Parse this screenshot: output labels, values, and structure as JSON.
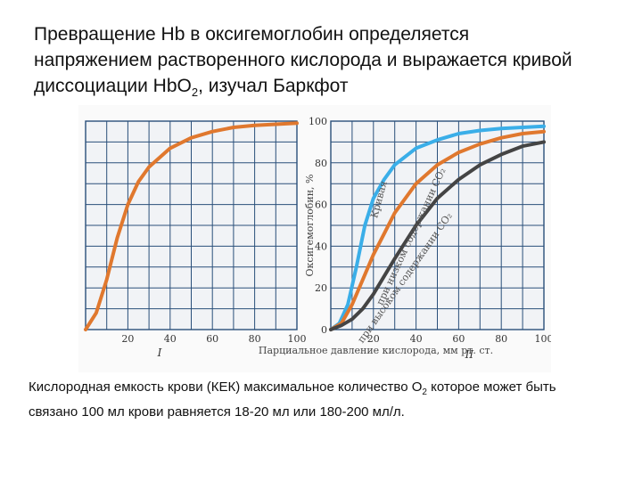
{
  "slide": {
    "title_line1": "Превращение Hb в оксигемоглобин определяется",
    "title_line2": "напряжением растворенного кислорода и выражается кривой",
    "title_line3_pre": "диссоциации HbO",
    "title_line3_sub": "2",
    "title_line3_post": ", изучал Баркфот",
    "footer_pre": "Кислородная емкость крови (КЕК) максимальное количество О",
    "footer_sub": "2",
    "footer_post": " которое может быть",
    "footer_line2": "связано 100 мл крови равняется 18-20 мл или  180-200 мл/л."
  },
  "chart_data": [
    {
      "type": "line",
      "panel_label": "I",
      "xlim": [
        0,
        100
      ],
      "ylim": [
        0,
        100
      ],
      "x_ticks": [
        "20",
        "40",
        "60",
        "80",
        "100"
      ],
      "series": [
        {
          "color": "#e0782e",
          "x": [
            0,
            5,
            10,
            15,
            20,
            25,
            30,
            40,
            50,
            60,
            70,
            80,
            90,
            100
          ],
          "y": [
            0,
            8,
            24,
            44,
            60,
            71,
            78,
            87,
            92,
            95,
            97,
            98,
            98.5,
            99
          ]
        }
      ]
    },
    {
      "type": "line",
      "panel_label": "II",
      "xlim": [
        0,
        100
      ],
      "ylim": [
        0,
        100
      ],
      "ylabel": "Оксигемоглобин, %",
      "xlabel": "Парциальное давление кислорода, мм рт. ст.",
      "y_ticks": [
        "0",
        "20",
        "40",
        "60",
        "80",
        "100"
      ],
      "x_ticks": [
        "20",
        "40",
        "60",
        "80",
        "100"
      ],
      "series": [
        {
          "color": "#3aaee8",
          "curve_label": "при низком содержании CO₂",
          "x": [
            0,
            4,
            8,
            12,
            16,
            20,
            25,
            30,
            40,
            50,
            60,
            70,
            80,
            90,
            100
          ],
          "y": [
            0,
            3,
            12,
            30,
            50,
            63,
            72,
            79,
            87,
            91,
            94,
            95.5,
            96.5,
            97,
            97.5
          ]
        },
        {
          "color": "#e0782e",
          "curve_label": "Кривая",
          "x": [
            0,
            5,
            10,
            15,
            20,
            25,
            30,
            40,
            50,
            60,
            70,
            80,
            90,
            100
          ],
          "y": [
            0,
            3,
            12,
            24,
            36,
            46,
            56,
            70,
            79,
            85,
            89,
            92,
            94,
            95
          ]
        },
        {
          "color": "#444444",
          "curve_label": "при высоком содержании CO₂",
          "x": [
            0,
            5,
            10,
            15,
            20,
            30,
            40,
            50,
            60,
            70,
            80,
            90,
            100
          ],
          "y": [
            0,
            2,
            5,
            10,
            17,
            34,
            50,
            63,
            72,
            79,
            84,
            88,
            90
          ]
        }
      ]
    }
  ]
}
